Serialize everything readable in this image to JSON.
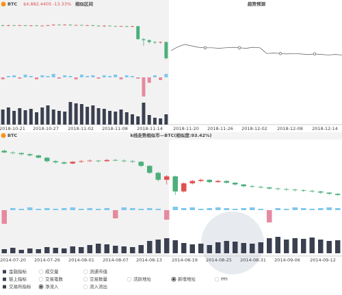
{
  "top_panel": {
    "symbol": "BTC",
    "price": "$4,882.4405",
    "change": "-13.33%",
    "left_label": "相似区间",
    "right_label": "趋势预测",
    "candles": [
      [
        83,
        82,
        84,
        81
      ],
      [
        82,
        83,
        84,
        81
      ],
      [
        83,
        82.5,
        84,
        82
      ],
      [
        82.5,
        83,
        84,
        82
      ],
      [
        83,
        82,
        83.5,
        81
      ],
      [
        82,
        82.5,
        83,
        81
      ],
      [
        82.5,
        81.5,
        83,
        81
      ],
      [
        81.5,
        82,
        83,
        81
      ],
      [
        82,
        83,
        84,
        81.5
      ],
      [
        83,
        84,
        85,
        82
      ],
      [
        84,
        83.5,
        85,
        83
      ],
      [
        83.5,
        84,
        85,
        83
      ],
      [
        84,
        83,
        85,
        82
      ],
      [
        83,
        83.5,
        84,
        82
      ],
      [
        83.5,
        82.5,
        84,
        82
      ],
      [
        82.5,
        83,
        84,
        82
      ],
      [
        83,
        82,
        84,
        81
      ],
      [
        82,
        81,
        83,
        80
      ],
      [
        81,
        82,
        83,
        80
      ],
      [
        82,
        81.5,
        83,
        81
      ],
      [
        81.5,
        80.5,
        82,
        80
      ],
      [
        80.5,
        81,
        82,
        80
      ],
      [
        81,
        80,
        82,
        79
      ],
      [
        80,
        81,
        82,
        79
      ],
      [
        81,
        54,
        82,
        53
      ],
      [
        54,
        52,
        56,
        40
      ],
      [
        52,
        48,
        53,
        45
      ],
      [
        48,
        47,
        50,
        44
      ],
      [
        47,
        48,
        49,
        45
      ],
      [
        48,
        14,
        49,
        12
      ]
    ],
    "flows": [
      -3,
      2,
      3,
      -2,
      4,
      2,
      -3,
      3,
      2,
      5,
      -2,
      3,
      2,
      -3,
      4,
      2,
      3,
      -2,
      3,
      2,
      4,
      -3,
      3,
      2,
      -2,
      -28,
      -8,
      3,
      -4,
      5
    ],
    "volumes": [
      22,
      25,
      20,
      24,
      21,
      23,
      18,
      25,
      28,
      22,
      20,
      19,
      33,
      31,
      30,
      26,
      28,
      24,
      23,
      20,
      19,
      22,
      18,
      15,
      12,
      32,
      14,
      10,
      9,
      15
    ],
    "trend": [
      30,
      38,
      43,
      40,
      37,
      36,
      36,
      35,
      36,
      37,
      36,
      35,
      37,
      36,
      24,
      25,
      24,
      23,
      24,
      23,
      22,
      23,
      22,
      21,
      22,
      21
    ],
    "trend_markers": [
      5,
      10,
      16,
      21
    ],
    "x_labels": [
      "2018-10-21",
      "2018-10-27",
      "2018-11-02",
      "2018-11-08",
      "2018-11-14",
      "2018-11-20",
      "2018-11-26",
      "2018-12-02",
      "2018-12-08",
      "2018-12-14"
    ]
  },
  "bottom_panel": {
    "symbol": "BTC",
    "title": "k线走势相似币—BTC(相似度:93.42%)",
    "candles": [
      [
        88,
        85,
        90,
        84
      ],
      [
        85,
        84,
        87,
        82
      ],
      [
        84,
        82,
        85,
        80
      ],
      [
        82,
        80,
        84,
        78
      ],
      [
        80,
        76,
        81,
        75
      ],
      [
        76,
        70,
        77,
        68
      ],
      [
        70,
        68,
        72,
        66
      ],
      [
        68,
        66,
        70,
        64
      ],
      [
        66,
        69,
        70,
        65
      ],
      [
        69,
        70,
        72,
        67
      ],
      [
        70,
        71,
        73,
        69
      ],
      [
        71,
        70,
        72,
        68
      ],
      [
        70,
        72,
        74,
        69
      ],
      [
        72,
        71,
        74,
        70
      ],
      [
        71,
        70,
        73,
        68
      ],
      [
        70,
        69,
        72,
        67
      ],
      [
        69,
        62,
        70,
        60
      ],
      [
        62,
        50,
        63,
        48
      ],
      [
        50,
        38,
        52,
        35
      ],
      [
        38,
        44,
        46,
        30
      ],
      [
        44,
        18,
        45,
        12
      ],
      [
        18,
        32,
        34,
        16
      ],
      [
        32,
        36,
        38,
        30
      ],
      [
        36,
        38,
        40,
        34
      ],
      [
        38,
        34,
        39,
        32
      ],
      [
        34,
        36,
        38,
        33
      ],
      [
        36,
        33,
        37,
        31
      ],
      [
        33,
        30,
        34,
        28
      ],
      [
        30,
        27,
        31,
        25
      ],
      [
        27,
        26,
        29,
        24
      ],
      [
        26,
        25,
        28,
        23
      ],
      [
        25,
        23,
        26,
        21
      ],
      [
        23,
        22,
        25,
        20
      ],
      [
        22,
        21,
        24,
        19
      ],
      [
        21,
        20,
        23,
        18
      ],
      [
        20,
        19,
        22,
        17
      ],
      [
        19,
        18,
        21,
        16
      ],
      [
        18,
        16,
        19,
        14
      ],
      [
        16,
        14,
        17,
        12
      ],
      [
        14,
        12,
        15,
        10
      ]
    ],
    "flows": [
      -20,
      3,
      2,
      4,
      2,
      3,
      2,
      3,
      4,
      2,
      3,
      2,
      3,
      -12,
      4,
      3,
      2,
      3,
      2,
      -14,
      5,
      3,
      4,
      2,
      3,
      4,
      3,
      2,
      3,
      4,
      2,
      -18,
      3,
      2,
      4,
      3,
      2,
      3,
      4,
      3
    ],
    "volumes": [
      6,
      8,
      5,
      7,
      6,
      9,
      8,
      7,
      10,
      9,
      12,
      14,
      13,
      11,
      10,
      9,
      12,
      18,
      20,
      22,
      19,
      15,
      13,
      14,
      12,
      16,
      18,
      17,
      15,
      14,
      16,
      22,
      24,
      20,
      22,
      21,
      23,
      20,
      18,
      19
    ],
    "x_labels": [
      "2014-07-20",
      "2014-07-26",
      "2014-08-01",
      "2014-08-07",
      "2014-08-13",
      "2014-08-19",
      "2014-08-25",
      "2014-08-31",
      "2014-09-06",
      "2014-09-12"
    ]
  },
  "legend": {
    "rows": [
      [
        {
          "label": "金融指标",
          "group": true
        },
        {
          "label": "成交量",
          "checked": false
        },
        {
          "label": "流通市值",
          "checked": false
        }
      ],
      [
        {
          "label": "链上指标",
          "group": true
        },
        {
          "label": "交易笔数",
          "checked": false
        },
        {
          "label": "交易数量",
          "checked": false
        },
        {
          "label": "活跃地址",
          "checked": false
        },
        {
          "label": "新增地址",
          "checked": true
        },
        {
          "label": "PPI",
          "checked": false
        }
      ],
      [
        {
          "label": "交易所指标",
          "group": true
        },
        {
          "label": "净流入",
          "checked": true
        },
        {
          "label": "流入流出",
          "checked": false
        }
      ]
    ]
  }
}
